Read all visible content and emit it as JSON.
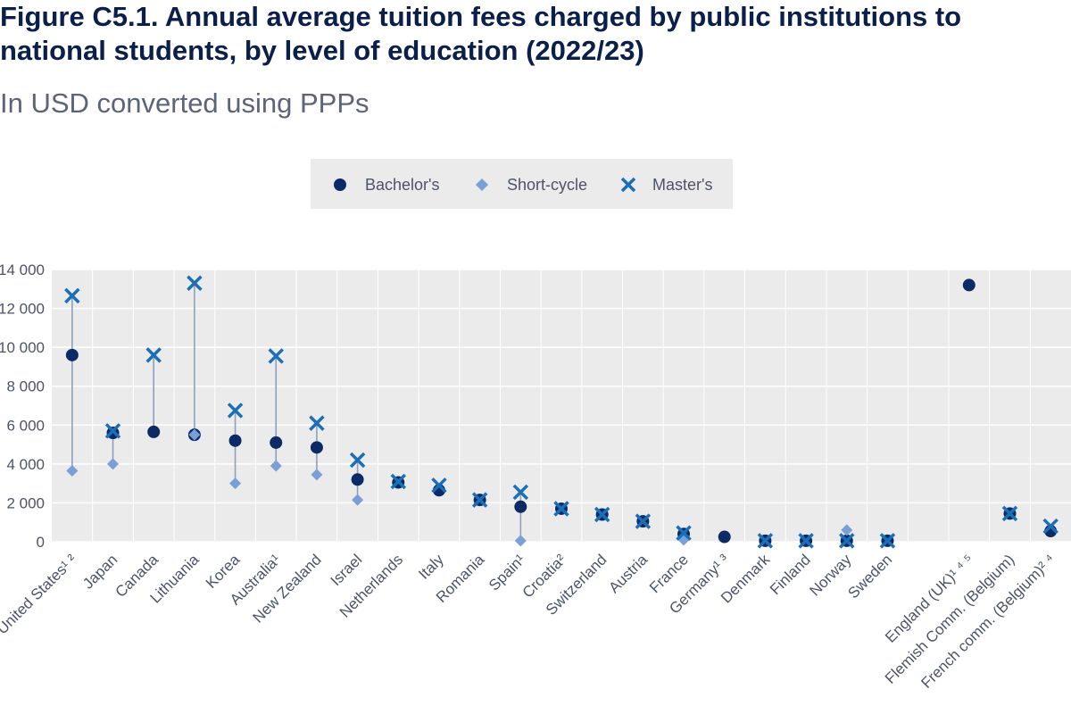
{
  "title": "Figure C5.1. Annual average tuition fees charged by public institutions to national students, by level of education (2022/23)",
  "subtitle": "In USD converted using PPPs",
  "colors": {
    "bachelor": "#0b2a66",
    "short_cycle": "#7a9fd6",
    "master": "#1a6fb7",
    "range_line": "#8da0bf",
    "plot_bg": "#ebebeb",
    "grid": "#ffffff",
    "legend_bg": "#ebebeb",
    "text": "#4b5468"
  },
  "chart_data": {
    "type": "scatter",
    "title": "Figure C5.1. Annual average tuition fees charged by public institutions to national students, by level of education (2022/23)",
    "subtitle": "In USD converted using PPPs",
    "xlabel": "",
    "ylabel": "",
    "ylim": [
      0,
      14000
    ],
    "yticks": [
      0,
      2000,
      4000,
      6000,
      8000,
      10000,
      12000,
      14000
    ],
    "ytick_labels": [
      "0",
      "2 000",
      "4 000",
      "6 000",
      "8 000",
      "10 000",
      "12 000",
      "14 000"
    ],
    "grid": true,
    "legend_position": "top-center",
    "categories": [
      "United States¹ ²",
      "Japan",
      "Canada",
      "Lithuania",
      "Korea",
      "Australia¹",
      "New Zealand",
      "Israel",
      "Netherlands",
      "Italy",
      "Romania",
      "Spain¹",
      "Croatia²",
      "Switzerland",
      "Austria",
      "France",
      "Germany¹ ³",
      "Denmark",
      "Finland",
      "Norway",
      "Sweden",
      "",
      "England (UK)¹ ⁴ ⁵",
      "Flemish Comm. (Belgium)",
      "French comm. (Belgium)² ⁴"
    ],
    "series": [
      {
        "name": "Bachelor's",
        "marker": "circle",
        "values": [
          9600,
          5600,
          5650,
          5500,
          5200,
          5100,
          4850,
          3200,
          3050,
          2650,
          2150,
          1800,
          1700,
          1400,
          1050,
          400,
          250,
          50,
          50,
          50,
          50,
          null,
          13200,
          1450,
          550
        ]
      },
      {
        "name": "Short-cycle",
        "marker": "diamond",
        "values": [
          3650,
          4000,
          null,
          5500,
          3000,
          3900,
          3450,
          2150,
          null,
          null,
          null,
          50,
          null,
          null,
          null,
          100,
          null,
          null,
          null,
          600,
          null,
          null,
          null,
          null,
          null
        ]
      },
      {
        "name": "Master's",
        "marker": "x",
        "values": [
          12650,
          5700,
          9600,
          13300,
          6750,
          9550,
          6100,
          4200,
          3100,
          2900,
          2150,
          2550,
          1700,
          1400,
          1050,
          450,
          null,
          50,
          50,
          50,
          50,
          null,
          null,
          1450,
          800
        ]
      }
    ]
  }
}
